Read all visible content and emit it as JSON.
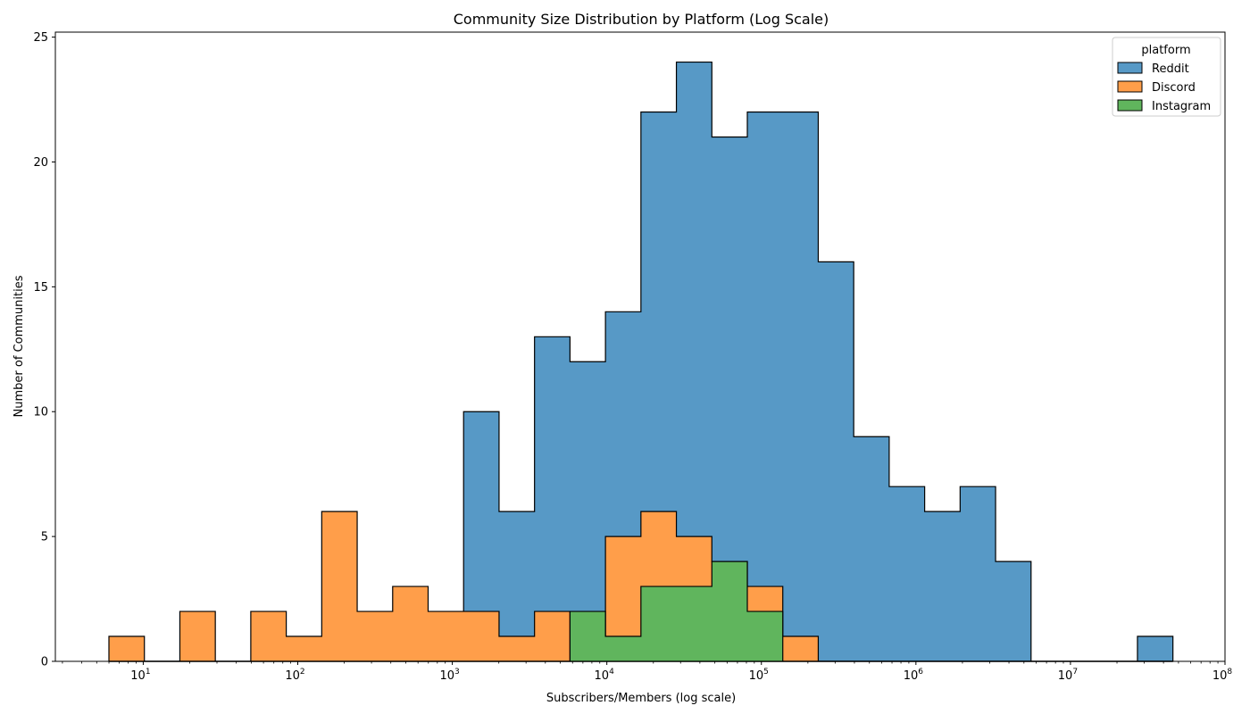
{
  "chart_data": {
    "type": "histogram-stepfilled-layered",
    "title": "Community Size Distribution by Platform (Log Scale)",
    "xlabel": "Subscribers/Members (log scale)",
    "ylabel": "Number of Communities",
    "x_scale": "log",
    "xlim": [
      2.7,
      100000000
    ],
    "ylim": [
      0,
      25.2
    ],
    "y_ticks": [
      "0",
      "5",
      "10",
      "15",
      "20",
      "25"
    ],
    "x_tick_exponents": [
      "1",
      "2",
      "3",
      "4",
      "5",
      "6",
      "7",
      "8"
    ],
    "bin_edges_log10": [
      0.778,
      1.0075,
      1.237,
      1.4665,
      1.696,
      1.9255,
      2.155,
      2.3845,
      2.614,
      2.8435,
      3.073,
      3.3025,
      3.532,
      3.7615,
      3.991,
      4.2205,
      4.45,
      4.6795,
      4.909,
      5.1385,
      5.368,
      5.5975,
      5.827,
      6.0565,
      6.286,
      6.5155,
      6.745,
      6.9745,
      7.204,
      7.4335,
      7.663
    ],
    "legend": {
      "title": "platform",
      "position": "upper right"
    },
    "grid": false,
    "series": [
      {
        "name": "Reddit",
        "color": "#5799c6",
        "values": [
          0,
          0,
          0,
          0,
          0,
          0,
          0,
          0,
          0,
          0,
          10,
          6,
          13,
          12,
          14,
          22,
          24,
          21,
          22,
          22,
          16,
          9,
          7,
          6,
          7,
          4,
          0,
          0,
          0,
          1
        ]
      },
      {
        "name": "Discord",
        "color": "#ff9e4a",
        "values": [
          1,
          0,
          2,
          0,
          2,
          1,
          6,
          2,
          3,
          2,
          2,
          1,
          2,
          0,
          5,
          6,
          5,
          4,
          3,
          1,
          0,
          0,
          0,
          0,
          0,
          0,
          0,
          0,
          0,
          0
        ]
      },
      {
        "name": "Instagram",
        "color": "#60b55d",
        "values": [
          0,
          0,
          0,
          0,
          0,
          0,
          0,
          0,
          0,
          0,
          0,
          0,
          0,
          2,
          1,
          3,
          3,
          4,
          2,
          0,
          0,
          0,
          0,
          0,
          0,
          0,
          0,
          0,
          0,
          0
        ]
      }
    ]
  }
}
